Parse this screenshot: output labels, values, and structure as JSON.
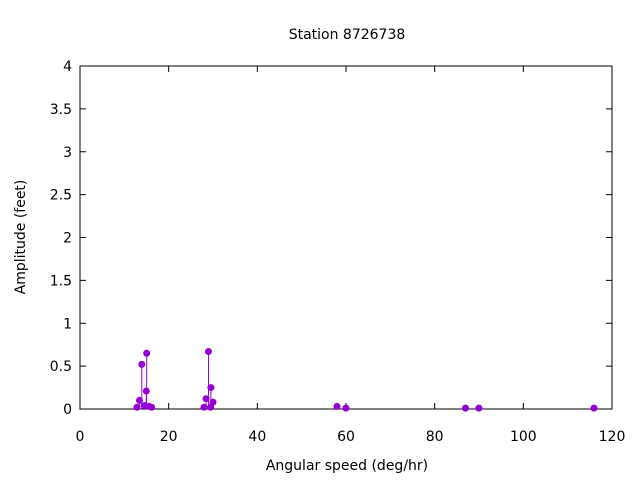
{
  "chart_data": {
    "type": "scatter",
    "style": "impulses-with-points",
    "title": "Station 8726738",
    "xlabel": "Angular speed (deg/hr)",
    "ylabel": "Amplitude (feet)",
    "xlim": [
      0,
      120
    ],
    "ylim": [
      0,
      4
    ],
    "xticks": [
      0,
      20,
      40,
      60,
      80,
      100,
      120
    ],
    "yticks": [
      0,
      0.5,
      1,
      1.5,
      2,
      2.5,
      3,
      3.5,
      4
    ],
    "xtick_labels": [
      "0",
      "20",
      "40",
      "60",
      "80",
      "100",
      "120"
    ],
    "ytick_labels": [
      "0",
      "0.5",
      "1",
      "1.5",
      "2",
      "2.5",
      "3",
      "3.5",
      "4"
    ],
    "grid": false,
    "legend": "none",
    "color": "#9400d3",
    "series": [
      {
        "x": [
          12.85,
          13.4,
          13.94,
          14.5,
          14.96,
          15.04,
          15.59,
          16.14,
          27.97,
          28.44,
          28.98,
          29.46,
          29.53,
          30.0,
          57.97,
          59.98,
          86.95,
          89.98,
          115.94
        ],
        "y": [
          0.02,
          0.1,
          0.52,
          0.04,
          0.21,
          0.65,
          0.03,
          0.02,
          0.02,
          0.12,
          0.67,
          0.02,
          0.25,
          0.08,
          0.03,
          0.01,
          0.01,
          0.01,
          0.01
        ]
      }
    ]
  }
}
